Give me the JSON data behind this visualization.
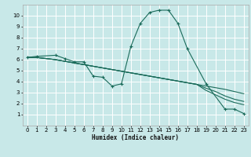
{
  "xlabel": "Humidex (Indice chaleur)",
  "bg_color": "#c8e8e8",
  "grid_color": "#ffffff",
  "line_color": "#1a6b5a",
  "xlim": [
    -0.5,
    23.5
  ],
  "ylim": [
    0,
    11
  ],
  "xtick_labels": [
    "0",
    "1",
    "2",
    "3",
    "4",
    "5",
    "6",
    "7",
    "8",
    "9",
    "10",
    "11",
    "12",
    "13",
    "14",
    "15",
    "16",
    "17",
    "18",
    "19",
    "20",
    "21",
    "22",
    "23"
  ],
  "xticks": [
    0,
    1,
    2,
    3,
    4,
    5,
    6,
    7,
    8,
    9,
    10,
    11,
    12,
    13,
    14,
    15,
    16,
    17,
    18,
    19,
    20,
    21,
    22,
    23
  ],
  "yticks": [
    1,
    2,
    3,
    4,
    5,
    6,
    7,
    8,
    9,
    10
  ],
  "series": [
    {
      "x": [
        0,
        1,
        3,
        4,
        5,
        6,
        7,
        8,
        9,
        10,
        11,
        12,
        13,
        14,
        15,
        16,
        17,
        19,
        21,
        22,
        23
      ],
      "y": [
        6.2,
        6.3,
        6.4,
        6.1,
        5.8,
        5.8,
        4.5,
        4.4,
        3.6,
        3.8,
        7.2,
        9.3,
        10.3,
        10.5,
        10.5,
        9.3,
        7.0,
        3.8,
        1.5,
        1.5,
        1.1
      ],
      "markers": true
    },
    {
      "x": [
        0,
        1,
        3,
        4,
        5,
        6,
        7,
        8,
        9,
        10,
        11,
        12,
        13,
        14,
        15,
        16,
        17,
        18,
        19,
        20,
        21,
        22,
        23
      ],
      "y": [
        6.2,
        6.2,
        6.0,
        5.85,
        5.7,
        5.55,
        5.4,
        5.25,
        5.1,
        4.95,
        4.8,
        4.65,
        4.5,
        4.35,
        4.2,
        4.05,
        3.9,
        3.75,
        3.6,
        3.45,
        3.3,
        3.1,
        2.9
      ],
      "markers": false
    },
    {
      "x": [
        0,
        1,
        3,
        4,
        5,
        6,
        7,
        8,
        9,
        10,
        11,
        12,
        13,
        14,
        15,
        16,
        17,
        18,
        19,
        20,
        21,
        22,
        23
      ],
      "y": [
        6.2,
        6.2,
        6.0,
        5.85,
        5.7,
        5.55,
        5.4,
        5.25,
        5.1,
        4.95,
        4.8,
        4.65,
        4.5,
        4.35,
        4.2,
        4.05,
        3.9,
        3.75,
        3.4,
        3.1,
        2.7,
        2.4,
        2.2
      ],
      "markers": false
    },
    {
      "x": [
        0,
        1,
        3,
        4,
        5,
        6,
        7,
        8,
        9,
        10,
        11,
        12,
        13,
        14,
        15,
        16,
        17,
        18,
        19,
        20,
        21,
        22,
        23
      ],
      "y": [
        6.2,
        6.2,
        6.0,
        5.85,
        5.7,
        5.55,
        5.4,
        5.25,
        5.1,
        4.95,
        4.8,
        4.65,
        4.5,
        4.35,
        4.2,
        4.05,
        3.9,
        3.75,
        3.2,
        2.8,
        2.4,
        2.1,
        1.9
      ],
      "markers": false
    }
  ]
}
